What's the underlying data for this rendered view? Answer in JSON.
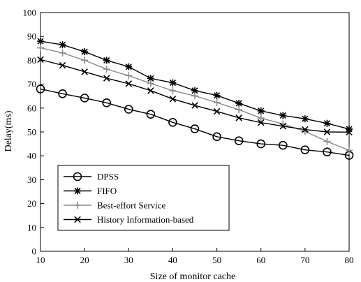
{
  "chart_data": {
    "type": "line",
    "xlabel": "Size of monitor cache",
    "ylabel": "Delay(ms)",
    "xlim": [
      10,
      80
    ],
    "ylim": [
      0,
      100
    ],
    "xticks": [
      "10",
      "20",
      "30",
      "40",
      "50",
      "60",
      "70",
      "80"
    ],
    "yticks": [
      "0",
      "10",
      "20",
      "30",
      "40",
      "50",
      "60",
      "70",
      "80",
      "90",
      "100"
    ],
    "grid": false,
    "legend_position": "bottom-left",
    "x": [
      10,
      15,
      20,
      25,
      30,
      35,
      40,
      45,
      50,
      55,
      60,
      65,
      70,
      75,
      80
    ],
    "series": [
      {
        "name": "DPSS",
        "marker": "circle",
        "color": "#000000",
        "values": [
          68,
          66,
          64.2,
          62.2,
          59.5,
          57.4,
          54,
          51.3,
          48,
          46.3,
          45,
          44.4,
          42.5,
          41.6,
          40.2
        ]
      },
      {
        "name": "FIFO",
        "marker": "asterisk",
        "color": "#000000",
        "values": [
          88,
          86.5,
          83.6,
          80,
          77.3,
          72.4,
          70.6,
          67.3,
          65.3,
          62,
          58.8,
          56.9,
          55.5,
          53.6,
          51.2
        ]
      },
      {
        "name": "Best-effort Service",
        "marker": "plus",
        "color": "#8c8c8c",
        "values": [
          85.2,
          83.1,
          80,
          76.3,
          73.6,
          70.3,
          67.3,
          65.1,
          62.3,
          59.3,
          55.8,
          53.3,
          50.2,
          46,
          42.3
        ]
      },
      {
        "name": "History Information-based",
        "marker": "x",
        "color": "#000000",
        "values": [
          80.3,
          77.9,
          75.2,
          72.5,
          70.2,
          67.3,
          63.8,
          61.1,
          58.6,
          55.9,
          53.9,
          52.4,
          51,
          50,
          49.9
        ]
      }
    ]
  }
}
